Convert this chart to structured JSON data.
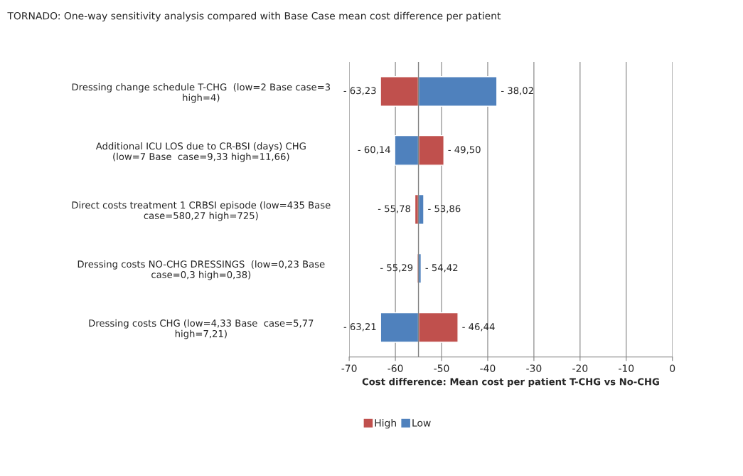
{
  "chart_data": {
    "type": "bar",
    "orientation": "horizontal",
    "title": "TORNADO: One-way sensitivity analysis compared with Base Case mean cost difference per patient",
    "categories": [
      "Dressing change schedule T-CHG  (low=2 Base case=3\nhigh=4)",
      "Additional ICU LOS due to CR-BSI (days) CHG\n(low=7 Base  case=9,33 high=11,66)",
      "Direct costs treatment 1 CRBSI episode (low=435 Base\ncase=580,27 high=725)",
      "Dressing costs NO-CHG DRESSINGS  (low=0,23 Base\ncase=0,3 high=0,38)",
      "Dressing costs CHG (low=4,33 Base  case=5,77\nhigh=7,21)"
    ],
    "series": [
      {
        "name": "High",
        "color": "#c0504d",
        "base": [
          -55,
          -55,
          -55,
          -55,
          -55
        ],
        "values": [
          -8.23,
          5.5,
          -0.78,
          -0.29,
          8.56
        ],
        "value_labels": [
          "- 63,23",
          "- 49,50",
          "- 55,78",
          "- 55,29",
          "- 46,44"
        ]
      },
      {
        "name": "Low",
        "color": "#4f81bd",
        "base": [
          -55,
          -55,
          -55,
          -55,
          -55
        ],
        "values": [
          16.98,
          -5.14,
          1.14,
          0.58,
          -8.21
        ],
        "value_labels": [
          "- 38,02",
          "- 60,14",
          "- 53,86",
          "- 54,42",
          "- 63,21"
        ]
      }
    ],
    "xlabel": "Cost difference: Mean cost per patient T-CHG vs No-CHG",
    "xlim": [
      -70,
      0
    ],
    "xticks": [
      -70,
      -60,
      -50,
      -40,
      -30,
      -20,
      -10,
      0
    ],
    "ref_lines": [
      {
        "axis": "x",
        "value": -55,
        "color": "#808080"
      }
    ],
    "grid": "x",
    "legend": "bottom"
  }
}
